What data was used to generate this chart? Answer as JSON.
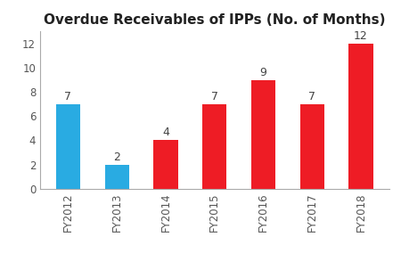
{
  "categories": [
    "FY2012",
    "FY2013",
    "FY2014",
    "FY2015",
    "FY2016",
    "FY2017",
    "FY2018"
  ],
  "values": [
    7,
    2,
    4,
    7,
    9,
    7,
    12
  ],
  "bar_colors": [
    "#29ABE2",
    "#29ABE2",
    "#EE1C25",
    "#EE1C25",
    "#EE1C25",
    "#EE1C25",
    "#EE1C25"
  ],
  "title": "Overdue Receivables of IPPs (No. of Months)",
  "title_fontsize": 11,
  "ylim": [
    0,
    13
  ],
  "yticks": [
    0,
    2,
    4,
    6,
    8,
    10,
    12
  ],
  "label_fontsize": 9,
  "tick_fontsize": 8.5,
  "bar_width": 0.5,
  "background_color": "#ffffff"
}
